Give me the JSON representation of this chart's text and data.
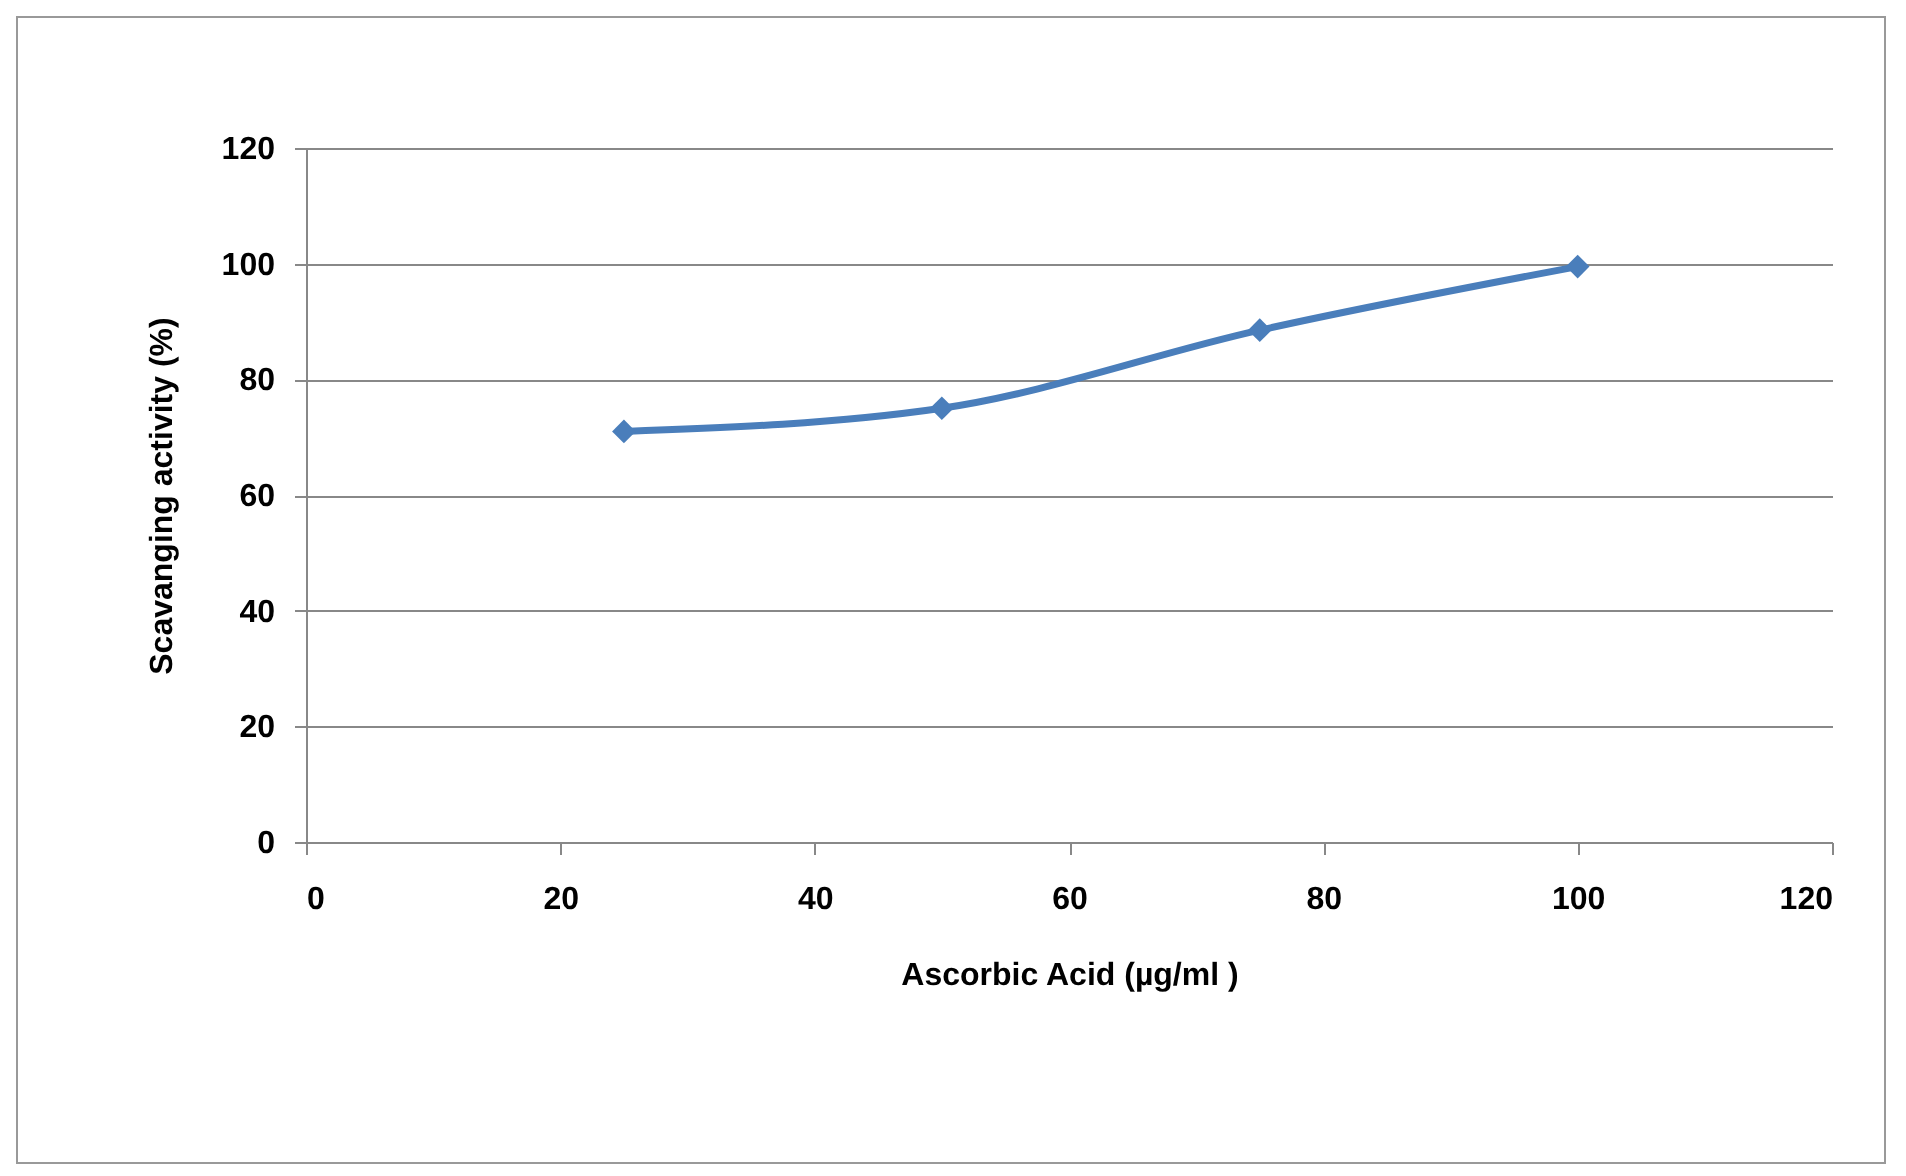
{
  "chart_data": {
    "type": "line",
    "xlabel": "Ascorbic Acid (µg/ml )",
    "ylabel": "Scavanging  activity (%)",
    "x": [
      25,
      50,
      75,
      100
    ],
    "series": [
      {
        "color": "#4a7ebb",
        "values": [
          71,
          75,
          88.5,
          99.5
        ]
      }
    ],
    "xlim": [
      0,
      120
    ],
    "xticks": [
      0,
      20,
      40,
      60,
      80,
      100,
      120
    ],
    "ylim": [
      0,
      120
    ],
    "yticks": [
      0,
      20,
      40,
      60,
      80,
      100,
      120
    ],
    "grid": "y",
    "marker": "diamond",
    "line_style": "solid",
    "legend": false
  }
}
